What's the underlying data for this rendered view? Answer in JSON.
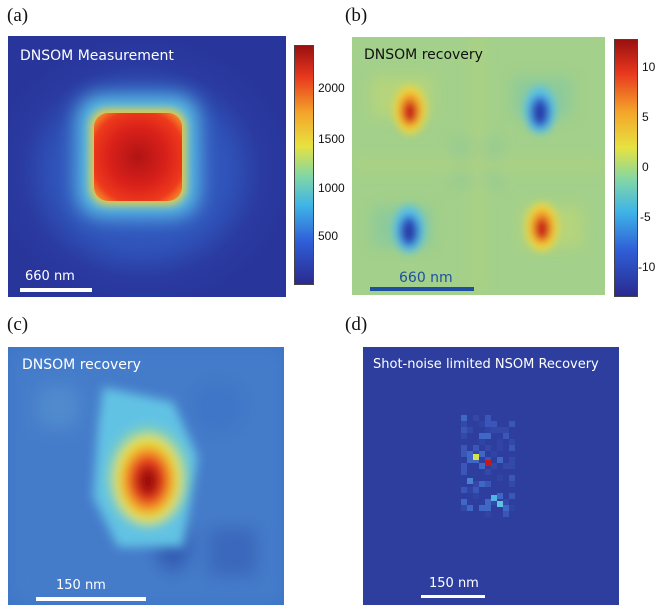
{
  "panels": {
    "a": {
      "label": "(a)",
      "title": "DNSOM Measurement",
      "scale": "660 nm"
    },
    "b": {
      "label": "(b)",
      "title": "DNSOM recovery",
      "scale": "660 nm"
    },
    "c": {
      "label": "(c)",
      "title": "DNSOM recovery",
      "scale": "150 nm"
    },
    "d": {
      "label": "(d)",
      "title": "Shot-noise limited NSOM Recovery",
      "scale": "150 nm"
    }
  },
  "colorbar_a": {
    "ticks": [
      "2000",
      "1500",
      "1000",
      "500"
    ]
  },
  "colorbar_b": {
    "ticks": [
      "10",
      "5",
      "0",
      "-5",
      "-10"
    ]
  },
  "colors": {
    "deep_blue": "#2d3e9e",
    "mid_green": "#9ccf86",
    "red": "#c8181c"
  }
}
